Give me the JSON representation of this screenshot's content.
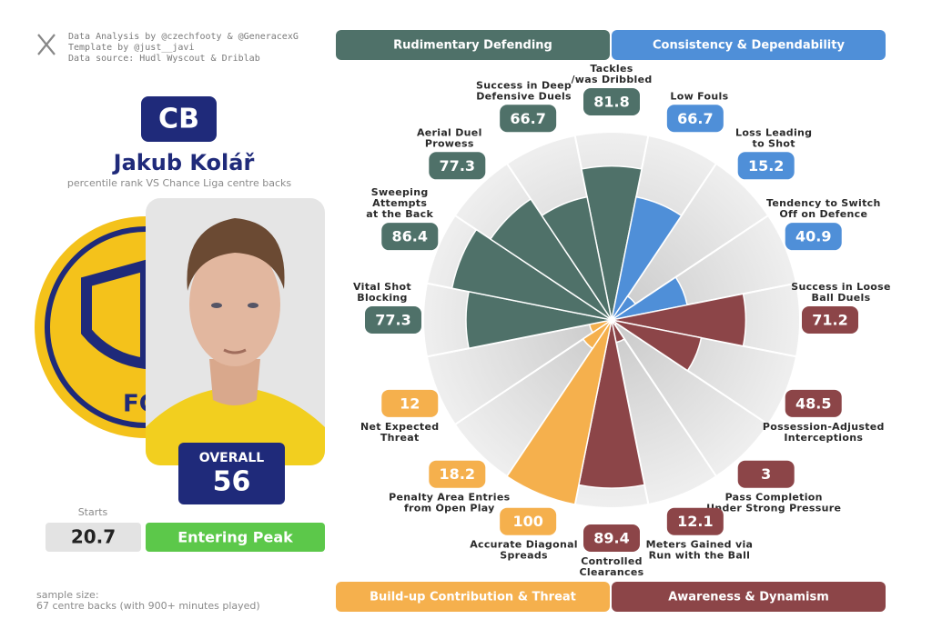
{
  "header": {
    "credits": [
      "Data Analysis by @czechfooty & @GeneracexG",
      "Template by @just__javi",
      "Data source: Hudl Wyscout & Driblab"
    ],
    "position": "CB",
    "player_name": "Jakub Kolář",
    "subtitle": "percentile rank VS Chance Liga centre backs",
    "club_logo_text": "FC ZV"
  },
  "overall": {
    "label": "OVERALL",
    "value": 56
  },
  "starts": {
    "label": "Starts",
    "value": 20.7
  },
  "status": "Entering Peak",
  "sample_size": [
    "sample size:",
    "67 centre backs (with 900+ minutes played)"
  ],
  "chart_data": {
    "type": "pizza",
    "categories": [
      "Tackles\n/was Dribbled",
      "Low Fouls",
      "Loss Leading\nto Shot",
      "Tendency to Switch\nOff on Defence",
      "Success in Loose\nBall Duels",
      "Possession-Adjusted\nInterceptions",
      "Pass Completion\nUnder Strong Pressure",
      "Meters Gained via\nRun with the Ball",
      "Controlled\nClearances",
      "Accurate Diagonal\nSpreads",
      "Penalty Area Entries\nfrom Open Play",
      "Net Expected\nThreat",
      "Vital Shot\nBlocking",
      "Sweeping\nAttempts\nat the Back",
      "Aerial Duel\nProwess",
      "Success in Deep\nDefensive Duels"
    ],
    "values": [
      81.8,
      66.7,
      15.2,
      40.9,
      71.2,
      48.5,
      3,
      12.1,
      89.4,
      100,
      18.2,
      12,
      77.3,
      86.4,
      77.3,
      66.7
    ],
    "colors": [
      "#4f7169",
      "#4f8fd8",
      "#4f8fd8",
      "#4f8fd8",
      "#8c4548",
      "#8c4548",
      "#8c4548",
      "#8c4548",
      "#8c4548",
      "#f5b04d",
      "#f5b04d",
      "#f5b04d",
      "#4f7169",
      "#4f7169",
      "#4f7169",
      "#4f7169"
    ],
    "rlim": [
      0,
      100
    ],
    "groups": [
      {
        "name": "Rudimentary Defending",
        "color": "#4f7169"
      },
      {
        "name": "Consistency & Dependability",
        "color": "#4f8fd8"
      },
      {
        "name": "Build-up Contribution & Threat",
        "color": "#f5b04d"
      },
      {
        "name": "Awareness & Dynamism",
        "color": "#8c4548"
      }
    ]
  }
}
